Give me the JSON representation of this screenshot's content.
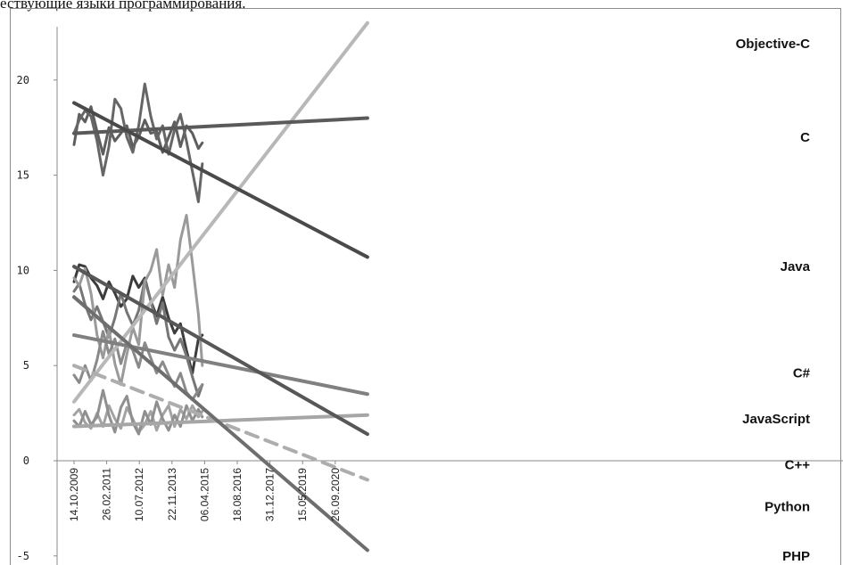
{
  "caption": "ествующие языки программирования.",
  "chart_data": {
    "type": "line",
    "ylim": [
      -5,
      22.5
    ],
    "yticks": [
      -5,
      0,
      5,
      10,
      15,
      20
    ],
    "x_axis_type": "date",
    "xlim": [
      "2009-10-14",
      "2022-02-01"
    ],
    "x_tick_labels": [
      "14.10.2009",
      "26.02.2011",
      "10.07.2012",
      "22.11.2013",
      "06.04.2015",
      "18.08.2016",
      "31.12.2017",
      "15.05.2019",
      "26.09.2020"
    ],
    "x_tick_dates": [
      "2009-10-14",
      "2011-02-26",
      "2012-07-10",
      "2013-11-22",
      "2015-04-06",
      "2016-08-18",
      "2017-12-31",
      "2019-05-15",
      "2020-09-26"
    ],
    "trend_lines": [
      {
        "name": "Objective-C",
        "color": "#b8b8b8",
        "start": [
          "2009-10-14",
          3.1
        ],
        "end": [
          "2022-02-01",
          23.0
        ]
      },
      {
        "name": "C",
        "color": "#5a5a5a",
        "start": [
          "2009-10-14",
          17.2
        ],
        "end": [
          "2022-02-01",
          18.0
        ]
      },
      {
        "name": "Java",
        "color": "#4a4a4a",
        "start": [
          "2009-10-14",
          18.8
        ],
        "end": [
          "2022-02-01",
          10.7
        ]
      },
      {
        "name": "C#",
        "color": "#808080",
        "start": [
          "2009-10-14",
          6.6
        ],
        "end": [
          "2022-02-01",
          3.5
        ]
      },
      {
        "name": "JavaScript",
        "color": "#a6a6a6",
        "start": [
          "2009-10-14",
          1.8
        ],
        "end": [
          "2022-02-01",
          2.4
        ]
      },
      {
        "name": "C++",
        "color": "#adadad",
        "dashed": true,
        "start": [
          "2009-10-14",
          5.0
        ],
        "end": [
          "2022-02-01",
          -1.0
        ]
      },
      {
        "name": "Python",
        "color": "#575757",
        "start": [
          "2009-10-14",
          10.2
        ],
        "end": [
          "2022-02-01",
          1.4
        ]
      },
      {
        "name": "PHP",
        "color": "#6e6e6e",
        "start": [
          "2009-10-14",
          8.6
        ],
        "end": [
          "2022-02-01",
          -4.7
        ]
      }
    ],
    "series_labels": [
      {
        "text": "Objective-C",
        "anchor_y": 21.9
      },
      {
        "text": "C",
        "anchor_y": 17.0
      },
      {
        "text": "Java",
        "anchor_y": 10.2
      },
      {
        "text": "C#",
        "anchor_y": 4.6
      },
      {
        "text": "JavaScript",
        "anchor_y": 2.2
      },
      {
        "text": "C++",
        "anchor_y": -0.2
      },
      {
        "text": "Python",
        "anchor_y": -2.4
      },
      {
        "text": "PHP",
        "anchor_y": -5.0
      }
    ],
    "measured_series": [
      {
        "color": "#5e5e5e",
        "dates": [
          "2009-10-14",
          "2010-01-01",
          "2010-04-01",
          "2010-07-01",
          "2010-10-01",
          "2011-01-01",
          "2011-04-01",
          "2011-07-01",
          "2011-10-01",
          "2012-01-01",
          "2012-04-01",
          "2012-07-01",
          "2012-10-01",
          "2013-01-01",
          "2013-04-01",
          "2013-07-01",
          "2013-10-01",
          "2014-01-01",
          "2014-04-01",
          "2014-07-01",
          "2014-10-01",
          "2015-01-01",
          "2015-03-01"
        ],
        "values": [
          16.6,
          18.2,
          17.8,
          18.6,
          17.3,
          16.1,
          17.5,
          16.8,
          17.2,
          17.6,
          16.5,
          17.0,
          17.9,
          17.2,
          17.3,
          16.2,
          17.0,
          17.8,
          16.5,
          17.6,
          17.2,
          16.4,
          16.7
        ]
      },
      {
        "color": "#666666",
        "dates": [
          "2009-10-14",
          "2010-01-01",
          "2010-04-01",
          "2010-07-01",
          "2010-10-01",
          "2011-01-01",
          "2011-04-01",
          "2011-07-01",
          "2011-10-01",
          "2012-01-01",
          "2012-04-01",
          "2012-07-01",
          "2012-10-01",
          "2013-01-01",
          "2013-04-01",
          "2013-07-01",
          "2013-10-01",
          "2014-01-01",
          "2014-04-01",
          "2014-07-01",
          "2014-10-01",
          "2015-01-01",
          "2015-03-01"
        ],
        "values": [
          17.2,
          17.9,
          18.4,
          18.1,
          16.8,
          15.0,
          16.5,
          19.0,
          18.5,
          17.0,
          16.2,
          17.6,
          19.8,
          18.1,
          16.9,
          17.6,
          16.1,
          17.4,
          18.2,
          16.8,
          15.2,
          13.6,
          15.6
        ]
      },
      {
        "color": "#3c3c3c",
        "dates": [
          "2009-10-14",
          "2010-01-01",
          "2010-04-01",
          "2010-07-01",
          "2010-10-01",
          "2011-01-01",
          "2011-04-01",
          "2011-07-01",
          "2011-10-01",
          "2012-01-01",
          "2012-04-01",
          "2012-07-01",
          "2012-10-01",
          "2013-01-01",
          "2013-04-01",
          "2013-07-01",
          "2013-10-01",
          "2014-01-01",
          "2014-04-01",
          "2014-07-01",
          "2014-10-01",
          "2015-01-01",
          "2015-03-01"
        ],
        "values": [
          9.4,
          10.3,
          10.2,
          9.6,
          9.2,
          8.5,
          9.4,
          8.8,
          8.1,
          8.5,
          9.7,
          9.1,
          9.6,
          8.4,
          7.6,
          8.6,
          7.5,
          6.7,
          7.2,
          5.8,
          4.6,
          6.4,
          6.6
        ]
      },
      {
        "color": "#767676",
        "dates": [
          "2009-10-14",
          "2010-01-01",
          "2010-04-01",
          "2010-07-01",
          "2010-10-01",
          "2011-01-01",
          "2011-04-01",
          "2011-07-01",
          "2011-10-01",
          "2012-01-01",
          "2012-04-01",
          "2012-07-01",
          "2012-10-01",
          "2013-01-01",
          "2013-04-01",
          "2013-07-01",
          "2013-10-01",
          "2014-01-01",
          "2014-04-01",
          "2014-07-01",
          "2014-10-01",
          "2015-01-01",
          "2015-03-01"
        ],
        "values": [
          8.9,
          9.3,
          8.2,
          7.4,
          8.1,
          7.3,
          6.5,
          7.5,
          8.8,
          7.8,
          7.1,
          7.9,
          9.5,
          8.4,
          7.2,
          8.3,
          6.5,
          5.8,
          6.4,
          5.5,
          4.4,
          3.4,
          4.0
        ]
      },
      {
        "color": "#9a9a9a",
        "dates": [
          "2009-10-14",
          "2010-01-01",
          "2010-04-01",
          "2010-07-01",
          "2010-10-01",
          "2011-01-01",
          "2011-04-01",
          "2011-07-01",
          "2011-10-01",
          "2012-01-01",
          "2012-04-01",
          "2012-07-01",
          "2012-10-01",
          "2013-01-01",
          "2013-04-01",
          "2013-07-01",
          "2013-10-01",
          "2014-01-01",
          "2014-04-01",
          "2014-07-01",
          "2014-10-01",
          "2015-01-01",
          "2015-03-01"
        ],
        "values": [
          9.6,
          9.2,
          10.1,
          8.8,
          6.6,
          5.4,
          6.9,
          5.1,
          4.0,
          5.6,
          7.0,
          6.1,
          9.4,
          10.0,
          11.1,
          8.7,
          10.3,
          9.1,
          11.6,
          12.9,
          10.4,
          7.7,
          5.0
        ]
      },
      {
        "color": "#8a8a8a",
        "dates": [
          "2009-10-14",
          "2010-01-01",
          "2010-04-01",
          "2010-07-01",
          "2010-10-01",
          "2011-01-01",
          "2011-04-01",
          "2011-07-01",
          "2011-10-01",
          "2012-01-01",
          "2012-04-01",
          "2012-07-01",
          "2012-10-01",
          "2013-01-01",
          "2013-04-01",
          "2013-07-01",
          "2013-10-01",
          "2014-01-01",
          "2014-04-01",
          "2014-07-01",
          "2014-10-01",
          "2015-01-01",
          "2015-03-01"
        ],
        "values": [
          4.5,
          4.1,
          5.0,
          4.2,
          5.3,
          6.8,
          5.6,
          6.4,
          5.1,
          6.2,
          5.8,
          4.9,
          6.2,
          5.4,
          4.6,
          5.2,
          4.5,
          3.9,
          4.6,
          3.6,
          3.2,
          3.7,
          4.0
        ]
      },
      {
        "color": "#a3a3a3",
        "dates": [
          "2009-10-14",
          "2010-01-01",
          "2010-04-01",
          "2010-07-01",
          "2010-10-01",
          "2011-01-01",
          "2011-04-01",
          "2011-07-01",
          "2011-10-01",
          "2012-01-01",
          "2012-04-01",
          "2012-07-01",
          "2012-10-01",
          "2013-01-01",
          "2013-04-01",
          "2013-07-01",
          "2013-10-01",
          "2014-01-01",
          "2014-04-01",
          "2014-07-01",
          "2014-10-01",
          "2015-01-01",
          "2015-03-01"
        ],
        "values": [
          2.4,
          2.7,
          2.0,
          1.7,
          2.5,
          1.8,
          2.9,
          2.2,
          1.7,
          2.8,
          2.2,
          1.5,
          1.9,
          2.6,
          1.6,
          2.4,
          2.9,
          1.8,
          2.7,
          2.2,
          2.9,
          2.3,
          2.6
        ]
      },
      {
        "color": "#8f8f8f",
        "dates": [
          "2009-10-14",
          "2010-01-01",
          "2010-04-01",
          "2010-07-01",
          "2010-10-01",
          "2011-01-01",
          "2011-04-01",
          "2011-07-01",
          "2011-10-01",
          "2012-01-01",
          "2012-04-01",
          "2012-07-01",
          "2012-10-01",
          "2013-01-01",
          "2013-04-01",
          "2013-07-01",
          "2013-10-01",
          "2014-01-01",
          "2014-04-01",
          "2014-07-01",
          "2014-10-01",
          "2015-01-01",
          "2015-03-01"
        ],
        "values": [
          2.1,
          1.8,
          2.6,
          1.9,
          2.3,
          3.7,
          2.4,
          1.5,
          2.8,
          3.4,
          2.0,
          1.4,
          2.6,
          1.9,
          3.1,
          2.2,
          1.6,
          2.4,
          1.8,
          2.9,
          2.1,
          2.7,
          2.3
        ]
      }
    ]
  }
}
